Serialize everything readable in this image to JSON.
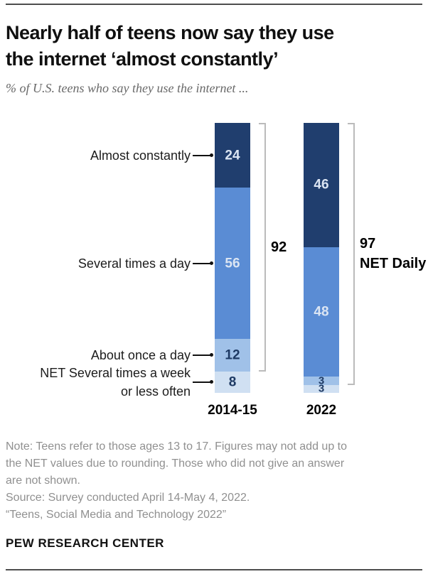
{
  "header": {
    "title_line1": "Nearly half of teens now say they use",
    "title_line2": "the internet ‘almost constantly’",
    "subtitle": "% of U.S. teens who say they use the internet ..."
  },
  "chart_data": {
    "type": "bar",
    "stacked": true,
    "title": "Nearly half of teens now say they use the internet ‘almost constantly’",
    "subtitle": "% of U.S. teens who say they use the internet ...",
    "units": "%",
    "ylim": [
      0,
      100
    ],
    "grid": false,
    "legend": "none",
    "categories": [
      "2014-15",
      "2022"
    ],
    "series": [
      {
        "name": "Almost constantly",
        "values": [
          24,
          46
        ],
        "color": "#203e6e",
        "label_lines": [
          "Almost constantly"
        ]
      },
      {
        "name": "Several times a day",
        "values": [
          56,
          48
        ],
        "color": "#5a8cd4",
        "label_lines": [
          "Several times a day"
        ]
      },
      {
        "name": "About once a day",
        "values": [
          12,
          3
        ],
        "color": "#a0c1e8",
        "label_lines": [
          "About once a day"
        ]
      },
      {
        "name": "NET Several times a week or less often",
        "values": [
          8,
          3
        ],
        "color": "#d0e0f2",
        "label_lines": [
          "NET Several times a week",
          "or less often"
        ]
      }
    ],
    "net_annotations": [
      {
        "category": "2014-15",
        "value": 92,
        "label_lines": [
          "92"
        ]
      },
      {
        "category": "2022",
        "value": 97,
        "label_lines": [
          "97",
          "NET Daily"
        ]
      }
    ],
    "value_label_colors": {
      "on_dark_segment": "#dbe5f3",
      "on_light_segment": "#1e3a64"
    },
    "category_label_color": "#1c1c1c",
    "net_label_color": "#000000",
    "bracket_color": "#bbbbbb",
    "connector_color": "#111111"
  },
  "footer": {
    "note_lines": [
      "Note: Teens refer to those ages 13 to 17. Figures may not add up to",
      "the NET values due to rounding. Those who did not give an answer",
      "are not shown.",
      "Source: Survey conducted April 14-May 4, 2022.",
      "“Teens, Social Media and Technology 2022”"
    ],
    "brand": "PEW RESEARCH CENTER"
  }
}
